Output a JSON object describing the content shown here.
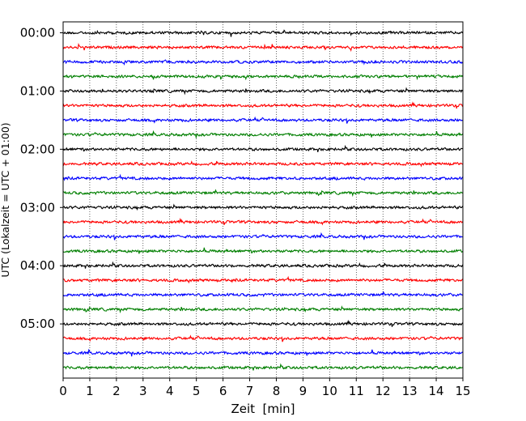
{
  "chart_data": {
    "type": "line",
    "title": "",
    "xlabel": "Zeit  [min]",
    "ylabel": "UTC (Lokalzeit = UTC + 01:00)",
    "xlim": [
      0,
      15
    ],
    "x_ticks": [
      "0",
      "1",
      "2",
      "3",
      "4",
      "5",
      "6",
      "7",
      "8",
      "9",
      "10",
      "11",
      "12",
      "13",
      "14",
      "15"
    ],
    "y_ticks": [
      "00:00",
      "01:00",
      "02:00",
      "03:00",
      "04:00",
      "05:00"
    ],
    "grid": "vertical dotted at each minute",
    "trace_count": 24,
    "trace_interval_min": 15,
    "trace_colors": [
      "#000000",
      "#ff0000",
      "#0000ff",
      "#007f00"
    ],
    "traces": [
      {
        "start": "00:00",
        "color": "#000000"
      },
      {
        "start": "00:15",
        "color": "#ff0000"
      },
      {
        "start": "00:30",
        "color": "#0000ff"
      },
      {
        "start": "00:45",
        "color": "#007f00"
      },
      {
        "start": "01:00",
        "color": "#000000"
      },
      {
        "start": "01:15",
        "color": "#ff0000"
      },
      {
        "start": "01:30",
        "color": "#0000ff"
      },
      {
        "start": "01:45",
        "color": "#007f00"
      },
      {
        "start": "02:00",
        "color": "#000000"
      },
      {
        "start": "02:15",
        "color": "#ff0000"
      },
      {
        "start": "02:30",
        "color": "#0000ff"
      },
      {
        "start": "02:45",
        "color": "#007f00"
      },
      {
        "start": "03:00",
        "color": "#000000"
      },
      {
        "start": "03:15",
        "color": "#ff0000"
      },
      {
        "start": "03:30",
        "color": "#0000ff"
      },
      {
        "start": "03:45",
        "color": "#007f00"
      },
      {
        "start": "04:00",
        "color": "#000000"
      },
      {
        "start": "04:15",
        "color": "#ff0000"
      },
      {
        "start": "04:30",
        "color": "#0000ff"
      },
      {
        "start": "04:45",
        "color": "#007f00"
      },
      {
        "start": "05:00",
        "color": "#000000"
      },
      {
        "start": "05:15",
        "color": "#ff0000"
      },
      {
        "start": "05:30",
        "color": "#0000ff"
      },
      {
        "start": "05:45",
        "color": "#007f00"
      }
    ]
  }
}
